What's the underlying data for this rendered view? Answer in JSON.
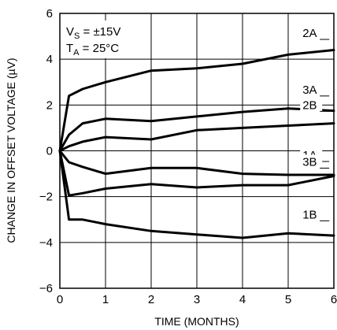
{
  "chart_data": {
    "type": "line",
    "xlabel": "TIME (MONTHS)",
    "ylabel": "CHANGE IN OFFSET VOLTAGE (µV)",
    "xlim": [
      0,
      6
    ],
    "ylim": [
      -6,
      6
    ],
    "x_ticks": [
      "0",
      "1",
      "2",
      "3",
      "4",
      "5",
      "6"
    ],
    "y_ticks": [
      "6",
      "4",
      "2",
      "0",
      "−2",
      "−4",
      "−6"
    ],
    "grid": true,
    "annotations": [
      {
        "main": "V",
        "sub": "S",
        "rest": " = ±15V"
      },
      {
        "main": "T",
        "sub": "A",
        "rest": " = 25°C"
      }
    ],
    "series": [
      {
        "name": "2A",
        "x": [
          0,
          0.2,
          0.5,
          1,
          2,
          3,
          4,
          5,
          6
        ],
        "y": [
          0,
          2.4,
          2.7,
          3.0,
          3.5,
          3.6,
          3.8,
          4.2,
          4.4
        ]
      },
      {
        "name": "3A",
        "x": [
          0,
          0.2,
          0.5,
          1,
          2,
          3,
          4,
          5,
          6
        ],
        "y": [
          0,
          0.7,
          1.2,
          1.4,
          1.3,
          1.5,
          1.7,
          1.85,
          1.75
        ]
      },
      {
        "name": "2B",
        "x": [
          0,
          0.2,
          0.5,
          1,
          2,
          3,
          4,
          5,
          6
        ],
        "y": [
          0,
          0.2,
          0.4,
          0.6,
          0.5,
          0.9,
          1.0,
          1.1,
          1.2
        ]
      },
      {
        "name": "1A",
        "x": [
          0,
          0.2,
          0.5,
          1,
          2,
          3,
          4,
          5,
          6
        ],
        "y": [
          0,
          -0.5,
          -0.7,
          -1.0,
          -0.75,
          -0.75,
          -1.0,
          -1.05,
          -1.05
        ]
      },
      {
        "name": "3B",
        "x": [
          0,
          0.2,
          0.5,
          1,
          2,
          3,
          4,
          5,
          6
        ],
        "y": [
          0,
          -1.95,
          -1.85,
          -1.65,
          -1.45,
          -1.6,
          -1.5,
          -1.5,
          -1.1
        ]
      },
      {
        "name": "1B",
        "x": [
          0,
          0.2,
          0.5,
          1,
          2,
          3,
          4,
          5,
          6
        ],
        "y": [
          0,
          -3.0,
          -3.0,
          -3.2,
          -3.5,
          -3.65,
          -3.8,
          -3.6,
          -3.7
        ]
      }
    ]
  }
}
